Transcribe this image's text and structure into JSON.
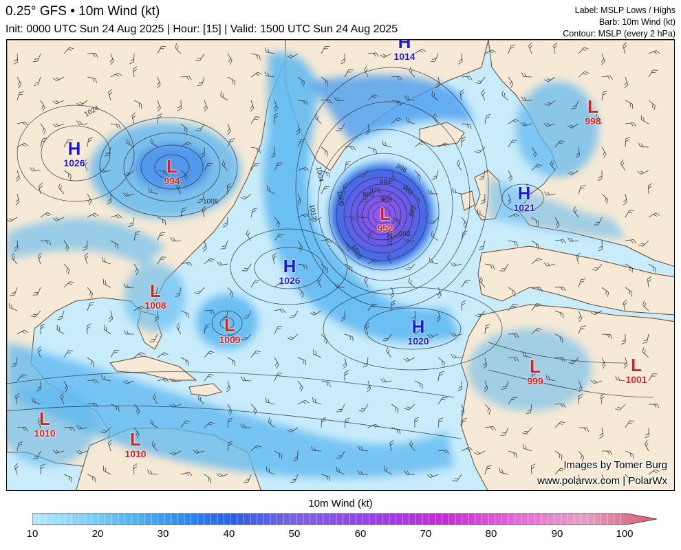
{
  "header": {
    "title": "0.25° GFS • 10m Wind (kt)",
    "subtitle": "Init: 0000 UTC Sun 24 Aug 2025 | Hour: [15] | Valid: 1500 UTC Sun 24 Aug 2025",
    "legend_label": "Label: MSLP Lows / Highs",
    "legend_barb": "Barb: 10m Wind (kt)",
    "legend_contour": "Contour: MSLP (every 2 hPa)"
  },
  "credits": {
    "line1": "Images by Tomer Burg",
    "line2": "www.polarwx.com | PolarWx"
  },
  "colorbar": {
    "title": "10m Wind (kt)",
    "ticks": [
      "10",
      "20",
      "30",
      "40",
      "50",
      "60",
      "70",
      "80",
      "90",
      "100"
    ]
  },
  "pressure_systems": {
    "highs": [
      {
        "letter": "H",
        "value": "1026"
      },
      {
        "letter": "H",
        "value": "1026"
      },
      {
        "letter": "H",
        "value": "1021"
      },
      {
        "letter": "H",
        "value": "1020"
      },
      {
        "letter": "H",
        "value": "1014"
      }
    ],
    "lows": [
      {
        "letter": "L",
        "value": "994"
      },
      {
        "letter": "L",
        "value": "952"
      },
      {
        "letter": "L",
        "value": "1008"
      },
      {
        "letter": "L",
        "value": "1009"
      },
      {
        "letter": "L",
        "value": "999"
      },
      {
        "letter": "L",
        "value": "1001"
      },
      {
        "letter": "L",
        "value": "998"
      },
      {
        "letter": "L",
        "value": "1010"
      },
      {
        "letter": "L",
        "value": "1010"
      }
    ]
  },
  "isobar_labels": [
    "1024",
    "1020",
    "1016",
    "1012",
    "1008",
    "1004",
    "1000",
    "996",
    "992",
    "988",
    "984",
    "980",
    "976",
    "972",
    "968"
  ],
  "colors": {
    "land": "#f6ead6",
    "wind_light": "#c9ecfb",
    "wind_mid": "#5cb7f0",
    "wind_strong": "#2a62e0",
    "low_label": "#d62020",
    "high_label": "#1a1ad6"
  }
}
